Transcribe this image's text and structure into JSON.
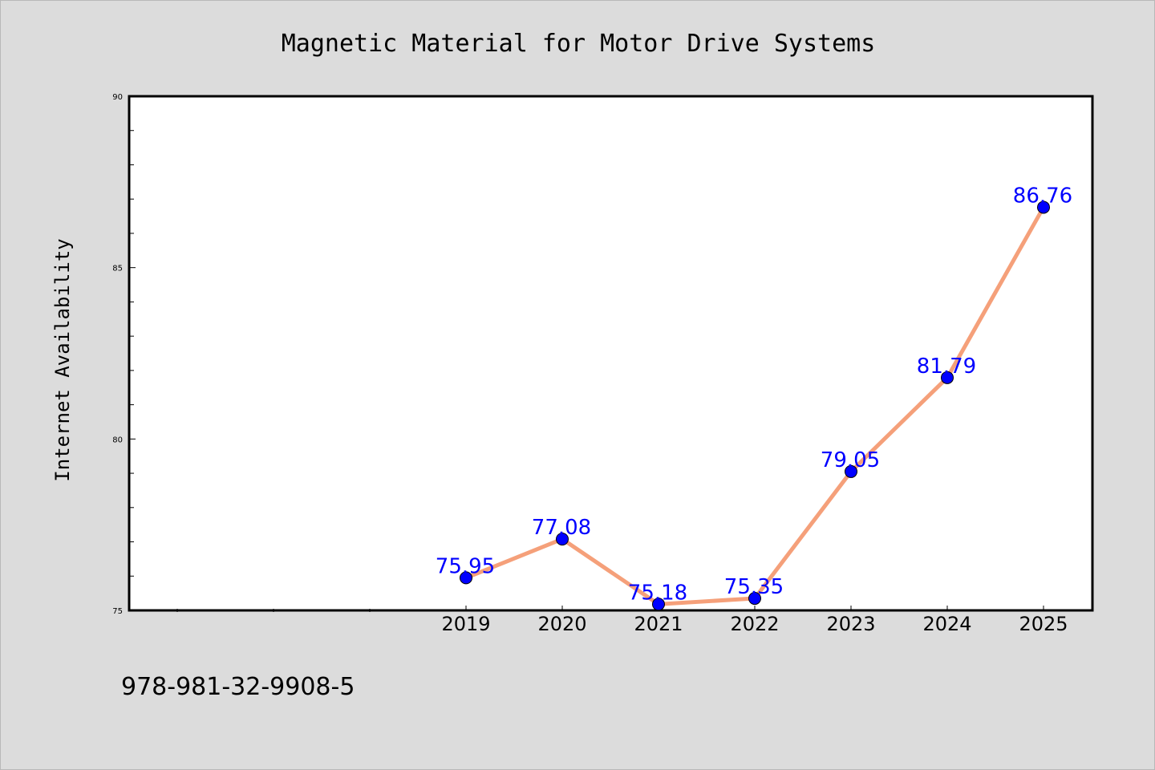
{
  "chart_data": {
    "type": "line",
    "title": "Magnetic Material for Motor Drive Systems",
    "xlabel": "",
    "ylabel": "Internet Availability",
    "categories": [
      "2019",
      "2020",
      "2021",
      "2022",
      "2023",
      "2024",
      "2025"
    ],
    "values": [
      75.95,
      77.08,
      75.18,
      75.35,
      79.05,
      81.79,
      86.76
    ],
    "data_labels": [
      "75.95",
      "77.08",
      "75.18",
      "75.35",
      "79.05",
      "81.79",
      "86.76"
    ],
    "ylim": [
      75,
      90
    ],
    "y_ticks": [
      "75",
      "80",
      "85",
      "90"
    ],
    "grid": false,
    "legend": "none"
  },
  "footer": {
    "isbn": "978-981-32-9908-5"
  },
  "colors": {
    "background": "#dcdcdc",
    "plot_background": "#ffffff",
    "line": "#f5a07a",
    "marker": "#0000ff",
    "label": "#0000ff",
    "axis": "#000000"
  }
}
